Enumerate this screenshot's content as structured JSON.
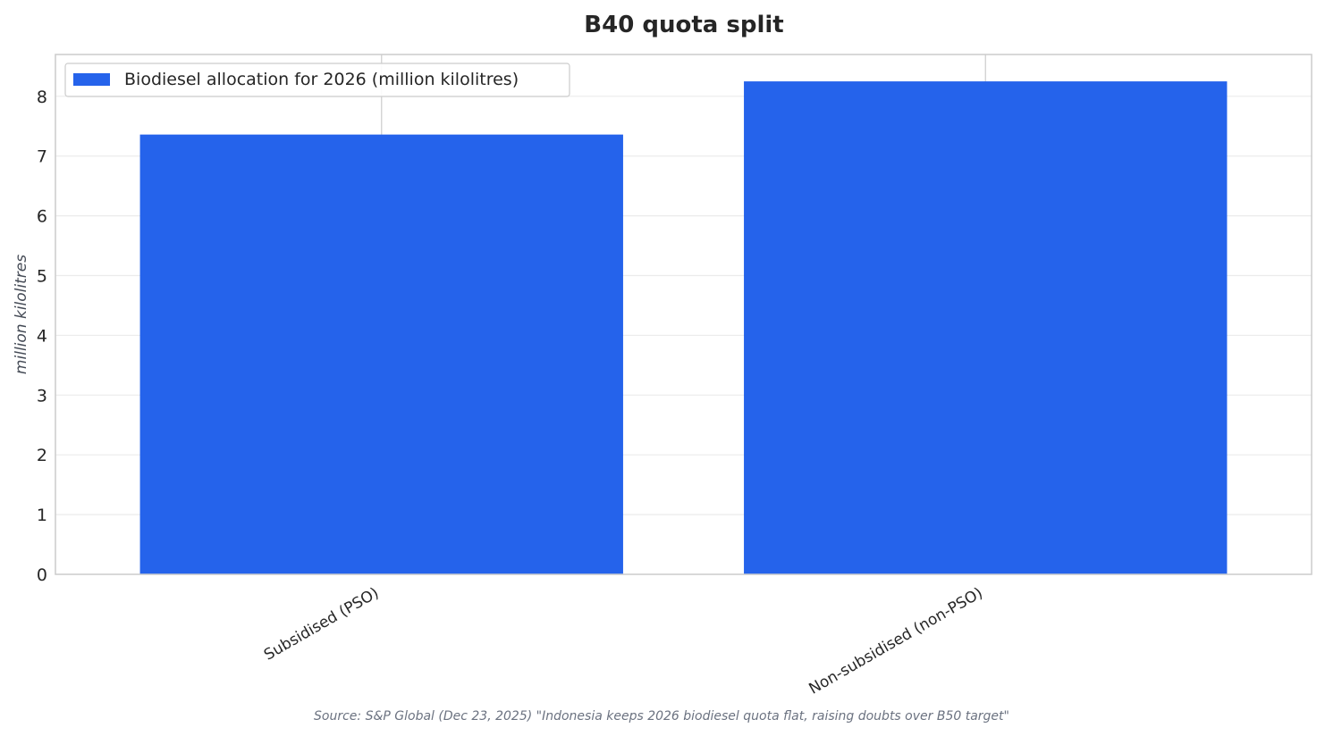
{
  "chart_data": {
    "type": "bar",
    "title": "B40 quota split",
    "ylabel": "million kilolitres",
    "xlabel": "",
    "categories": [
      "Subsidised (PSO)",
      "Non-subsidised (non-PSO)"
    ],
    "series": [
      {
        "name": "Biodiesel allocation for 2026 (million kilolitres)",
        "values": [
          7.36,
          8.25
        ],
        "color": "#2563eb"
      }
    ],
    "ylim": [
      0,
      8.7
    ],
    "yticks": [
      0,
      1,
      2,
      3,
      4,
      5,
      6,
      7,
      8
    ],
    "grid": "y",
    "legend": "top-left",
    "source": "Source: S&P Global (Dec 23, 2025) \"Indonesia keeps 2026 biodiesel quota flat, raising doubts over B50 target\""
  }
}
